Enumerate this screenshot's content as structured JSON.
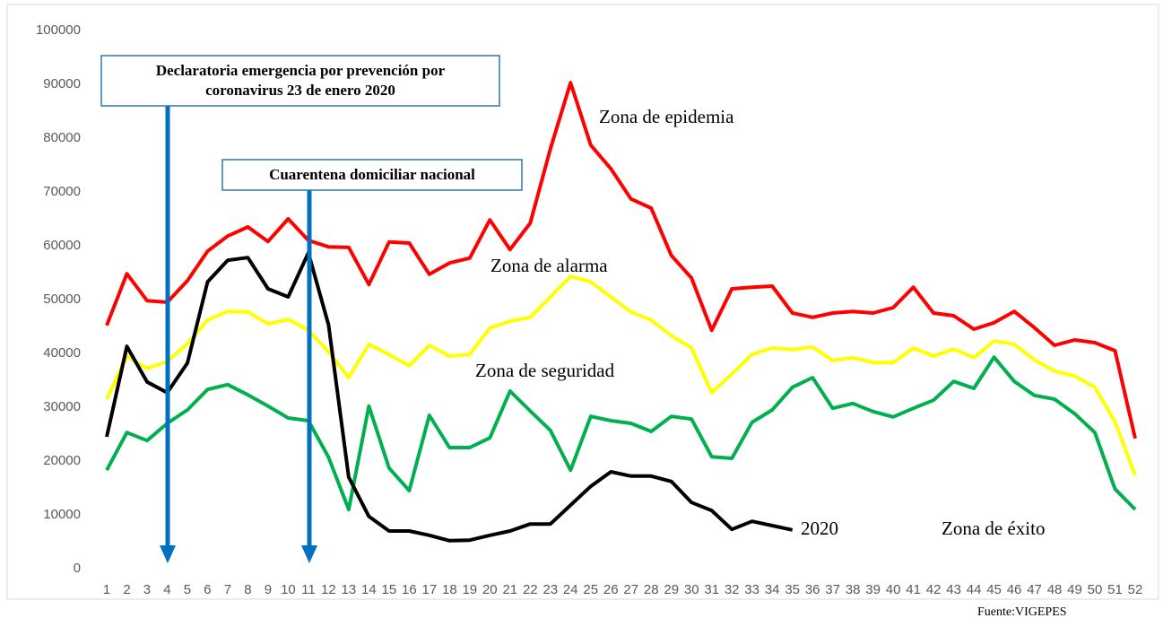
{
  "chart_data": {
    "type": "line",
    "categories": [
      "1",
      "2",
      "3",
      "4",
      "5",
      "6",
      "7",
      "8",
      "9",
      "10",
      "11",
      "12",
      "13",
      "14",
      "15",
      "16",
      "17",
      "18",
      "19",
      "20",
      "21",
      "22",
      "23",
      "24",
      "25",
      "26",
      "27",
      "28",
      "29",
      "30",
      "31",
      "32",
      "33",
      "34",
      "35",
      "36",
      "37",
      "38",
      "39",
      "40",
      "41",
      "42",
      "43",
      "44",
      "45",
      "46",
      "47",
      "48",
      "49",
      "50",
      "51",
      "52"
    ],
    "series": [
      {
        "name": "Zona de epidemia",
        "color": "#ff0000",
        "values": [
          45200,
          54800,
          49800,
          49500,
          53500,
          59000,
          61800,
          63500,
          60800,
          65000,
          61000,
          59800,
          59700,
          52800,
          60700,
          60500,
          54700,
          56800,
          57700,
          64800,
          59300,
          64200,
          78000,
          90300,
          78700,
          74300,
          68700,
          67000,
          58200,
          54000,
          44300,
          52000,
          52300,
          52500,
          47500,
          46700,
          47500,
          47800,
          47500,
          48500,
          52300,
          47500,
          47000,
          44500,
          45700,
          47800,
          44800,
          41500,
          42500,
          42000,
          40500,
          24200
        ]
      },
      {
        "name": "Zona de alarma",
        "color": "#ffff00",
        "values": [
          31500,
          39500,
          37200,
          38500,
          41800,
          46200,
          47800,
          47700,
          45500,
          46300,
          44300,
          40300,
          35500,
          41700,
          39800,
          37700,
          41500,
          39500,
          39800,
          44700,
          46000,
          46700,
          50500,
          54300,
          53300,
          50500,
          47700,
          46200,
          43300,
          41000,
          32700,
          36200,
          39800,
          41000,
          40700,
          41200,
          38700,
          39200,
          38300,
          38300,
          41000,
          39500,
          40800,
          39200,
          42300,
          41700,
          38800,
          36700,
          35800,
          33700,
          27300,
          17300
        ]
      },
      {
        "name": "Zona de seguridad",
        "color": "#00b050",
        "values": [
          18300,
          25300,
          23800,
          27000,
          29500,
          33300,
          34200,
          32300,
          30200,
          28000,
          27500,
          20700,
          11000,
          30200,
          18700,
          14500,
          28500,
          22500,
          22500,
          24300,
          33000,
          29300,
          25700,
          18300,
          28300,
          27500,
          27000,
          25500,
          28300,
          27800,
          20800,
          20500,
          27200,
          29500,
          33700,
          35500,
          29800,
          30700,
          29200,
          28200,
          29800,
          31300,
          34800,
          33500,
          39300,
          34800,
          32200,
          31500,
          28800,
          25300,
          14800,
          11000
        ]
      },
      {
        "name": "2020",
        "color": "#000000",
        "values": [
          24500,
          41300,
          34700,
          32700,
          38200,
          53300,
          57300,
          57800,
          52000,
          50500,
          58700,
          45300,
          17000,
          9700,
          7000,
          7000,
          6200,
          5200,
          5300,
          6200,
          7000,
          8300,
          8300,
          11800,
          15300,
          18000,
          17200,
          17200,
          16200,
          12300,
          10800,
          7300,
          8800,
          8000,
          7200,
          null,
          null,
          null,
          null,
          null,
          null,
          null,
          null,
          null,
          null,
          null,
          null,
          null,
          null,
          null,
          null,
          null
        ]
      }
    ],
    "zone_label": "Zona de éxito",
    "annotations": [
      "Declaratoria emergencia por prevención por",
      "coronavirus 23 de enero 2020",
      "Cuarentena domiciliar nacional"
    ],
    "source": "Fuente:VIGEPES",
    "ylim": [
      0,
      100000
    ],
    "yticks": [
      0,
      10000,
      20000,
      30000,
      40000,
      50000,
      60000,
      70000,
      80000,
      90000,
      100000
    ],
    "grid": false
  }
}
